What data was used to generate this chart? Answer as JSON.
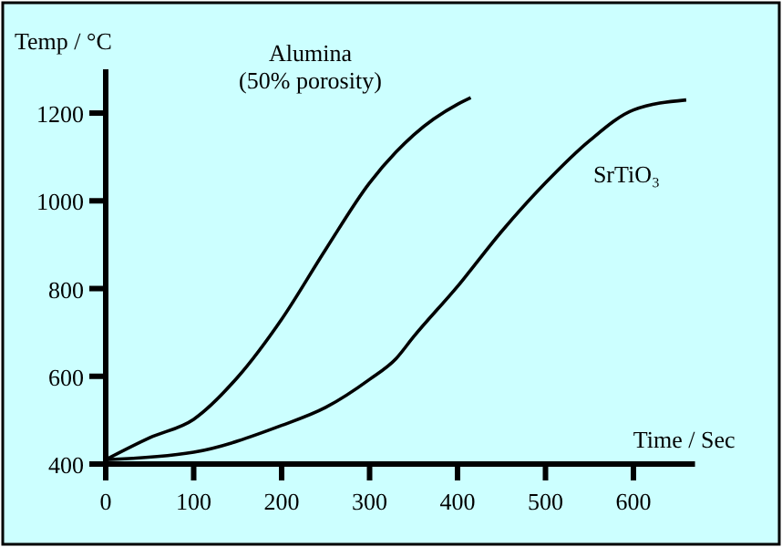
{
  "chart_data": {
    "type": "line",
    "xlabel": "Time / Sec",
    "ylabel": "Temp / °C",
    "xlim": [
      0,
      670
    ],
    "ylim": [
      400,
      1300
    ],
    "xticks": [
      0,
      100,
      200,
      300,
      400,
      500,
      600
    ],
    "yticks": [
      400,
      600,
      800,
      1000,
      1200
    ],
    "grid": false,
    "marker": "none",
    "line_style": "solid",
    "series": [
      {
        "name": "Alumina (50% porosity)",
        "color": "#000000",
        "x": [
          0,
          50,
          100,
          150,
          200,
          250,
          300,
          330,
          350,
          400,
          415
        ],
        "values": [
          410,
          460,
          502,
          598,
          730,
          889,
          1041,
          1111,
          1150,
          1220,
          1235
        ]
      },
      {
        "name": "SrTiO₃",
        "color": "#000000",
        "x": [
          0,
          100,
          200,
          250,
          300,
          330,
          350,
          400,
          450,
          500,
          550,
          600,
          660
        ],
        "values": [
          410,
          427,
          488,
          529,
          593,
          640,
          690,
          805,
          930,
          1041,
          1137,
          1207,
          1230
        ]
      }
    ]
  }
}
